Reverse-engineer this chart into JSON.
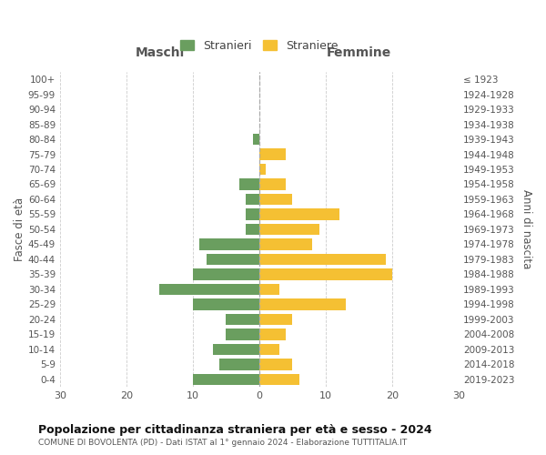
{
  "age_groups": [
    "100+",
    "95-99",
    "90-94",
    "85-89",
    "80-84",
    "75-79",
    "70-74",
    "65-69",
    "60-64",
    "55-59",
    "50-54",
    "45-49",
    "40-44",
    "35-39",
    "30-34",
    "25-29",
    "20-24",
    "15-19",
    "10-14",
    "5-9",
    "0-4"
  ],
  "birth_years": [
    "≤ 1923",
    "1924-1928",
    "1929-1933",
    "1934-1938",
    "1939-1943",
    "1944-1948",
    "1949-1953",
    "1954-1958",
    "1959-1963",
    "1964-1968",
    "1969-1973",
    "1974-1978",
    "1979-1983",
    "1984-1988",
    "1989-1993",
    "1994-1998",
    "1999-2003",
    "2004-2008",
    "2009-2013",
    "2014-2018",
    "2019-2023"
  ],
  "males": [
    0,
    0,
    0,
    0,
    1,
    0,
    0,
    3,
    2,
    2,
    2,
    9,
    8,
    10,
    15,
    10,
    5,
    5,
    7,
    6,
    10
  ],
  "females": [
    0,
    0,
    0,
    0,
    0,
    4,
    1,
    4,
    5,
    12,
    9,
    8,
    19,
    20,
    3,
    13,
    5,
    4,
    3,
    5,
    6
  ],
  "male_color": "#6a9e5f",
  "female_color": "#f5c033",
  "background_color": "#ffffff",
  "grid_color": "#cccccc",
  "title": "Popolazione per cittadinanza straniera per età e sesso - 2024",
  "subtitle": "COMUNE DI BOVOLENTA (PD) - Dati ISTAT al 1° gennaio 2024 - Elaborazione TUTTITALIA.IT",
  "ylabel_left": "Fasce di età",
  "ylabel_right": "Anni di nascita",
  "legend_male": "Stranieri",
  "legend_female": "Straniere",
  "xlim": 30,
  "bar_height": 0.75,
  "maschi_label": "Maschi",
  "femmine_label": "Femmine"
}
